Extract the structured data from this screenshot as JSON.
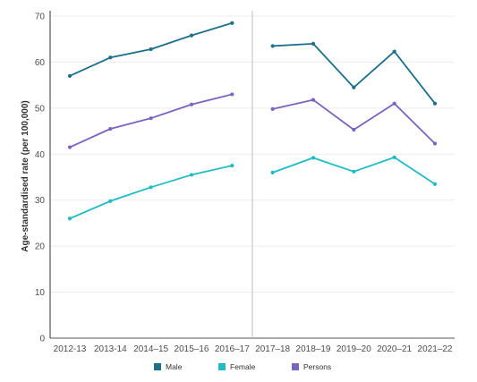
{
  "chart_data": {
    "type": "line",
    "title": "",
    "xlabel": "",
    "ylabel": "Age-standardised rate (per 100,000)",
    "ylim": [
      0,
      70
    ],
    "yticks": [
      "0",
      "10",
      "20",
      "30",
      "40",
      "50",
      "60",
      "70"
    ],
    "categories": [
      "2012-13",
      "2013-14",
      "2014–15",
      "2015–16",
      "2016–17",
      "2017–18",
      "2018–19",
      "2019–20",
      "2020–21",
      "2021–22"
    ],
    "break_after_category": "2016–17",
    "grid": true,
    "legend_position": "bottom",
    "series": [
      {
        "name": "Male",
        "color": "#1d6f8a",
        "values": [
          57.0,
          61.0,
          62.8,
          65.8,
          68.5,
          63.5,
          64.0,
          54.5,
          62.3,
          51.0
        ]
      },
      {
        "name": "Female",
        "color": "#1fbcc4",
        "values": [
          26.0,
          29.8,
          32.8,
          35.5,
          37.5,
          36.0,
          39.2,
          36.2,
          39.3,
          33.5
        ]
      },
      {
        "name": "Persons",
        "color": "#7b64bf",
        "values": [
          41.5,
          45.5,
          47.8,
          50.8,
          53.0,
          49.8,
          51.8,
          45.3,
          51.0,
          42.3
        ]
      }
    ]
  }
}
